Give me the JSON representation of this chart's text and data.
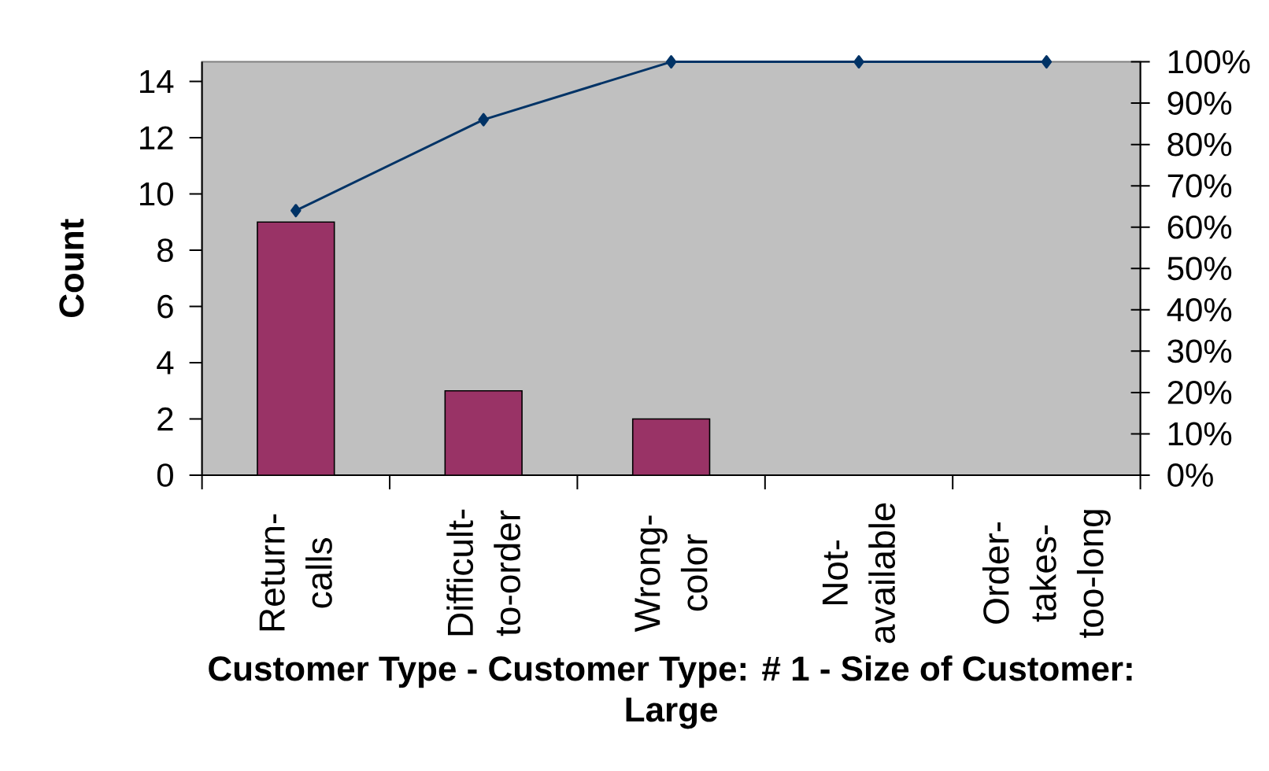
{
  "chart_data": {
    "type": "bar",
    "xlabel": "Customer Type - Customer Type: # 1 - Size of Customer: Large",
    "ylabel": "Count",
    "categories": [
      "Return-calls",
      "Difficult-to-order",
      "Wrong-color",
      "Not-available",
      "Order-takes-too-long"
    ],
    "series": [
      {
        "color": "#993366",
        "values": [
          9,
          3,
          2,
          0,
          0
        ]
      },
      {
        "type": "line",
        "axis": "y2",
        "color": "#003366",
        "marker": "diamond",
        "values": [
          64,
          86,
          100,
          100,
          100
        ]
      }
    ],
    "ylim": [
      0,
      14.7
    ],
    "yticks": [
      0,
      2,
      4,
      6,
      8,
      10,
      12,
      14
    ],
    "y2lim": [
      0,
      100
    ],
    "y2ticks": [
      {
        "value": 0,
        "label": "0%"
      },
      {
        "value": 10,
        "label": "10%"
      },
      {
        "value": 20,
        "label": "20%"
      },
      {
        "value": 30,
        "label": "30%"
      },
      {
        "value": 40,
        "label": "40%"
      },
      {
        "value": 50,
        "label": "50%"
      },
      {
        "value": 60,
        "label": "60%"
      },
      {
        "value": 70,
        "label": "70%"
      },
      {
        "value": 80,
        "label": "80%"
      },
      {
        "value": 90,
        "label": "90%"
      },
      {
        "value": 100,
        "label": "100%"
      }
    ]
  }
}
